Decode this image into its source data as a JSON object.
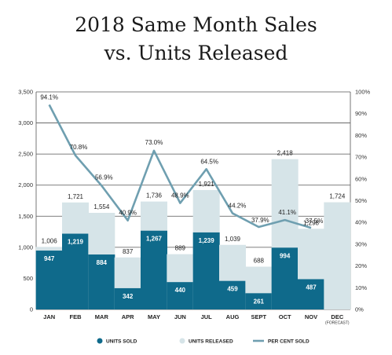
{
  "chart_data": {
    "type": "bar",
    "title_lines": [
      "2018 Same Month Sales",
      "vs. Units Released"
    ],
    "categories": [
      "JAN",
      "FEB",
      "MAR",
      "APR",
      "MAY",
      "JUN",
      "JUL",
      "AUG",
      "SEPT",
      "OCT",
      "NOV",
      "DEC"
    ],
    "category_notes": {
      "DEC": "(FORECAST)"
    },
    "series": [
      {
        "name": "UNITS SOLD",
        "type": "bar",
        "color": "#0f6a8b",
        "values": [
          947,
          1219,
          884,
          342,
          1267,
          440,
          1239,
          459,
          261,
          994,
          487,
          null
        ]
      },
      {
        "name": "UNITS RELEASED",
        "type": "bar",
        "color": "#d6e4e8",
        "values": [
          1006,
          1721,
          1554,
          837,
          1736,
          889,
          1921,
          1039,
          688,
          2418,
          1298,
          1724
        ]
      },
      {
        "name": "PER CENT SOLD",
        "type": "line",
        "color": "#6f9fb0",
        "axis": "right",
        "values": [
          94.1,
          70.8,
          56.9,
          40.9,
          73.0,
          48.9,
          64.5,
          44.2,
          37.9,
          41.1,
          37.5,
          null
        ],
        "labels": [
          "94.1%",
          "70.8%",
          "56.9%",
          "40.9%",
          "73.0%",
          "48.9%",
          "64.5%",
          "44.2%",
          "37.9%",
          "41.1%",
          "37.5%",
          null
        ]
      }
    ],
    "value_labels": {
      "sold": [
        "947",
        "1,219",
        "884",
        "342",
        "1,267",
        "440",
        "1,239",
        "459",
        "261",
        "994",
        "487",
        null
      ],
      "released": [
        "1,006",
        "1,721",
        "1,554",
        "837",
        "1,736",
        "889",
        "1,921",
        "1,039",
        "688",
        "2,418",
        "1,298",
        "1,724"
      ]
    },
    "y_left": {
      "min": 0,
      "max": 3500,
      "step": 500,
      "tick_labels": [
        "0",
        "500",
        "1,000",
        "1,500",
        "2,000",
        "2,500",
        "3,000",
        "3,500"
      ]
    },
    "y_right": {
      "min": 0,
      "max": 100,
      "step": 10,
      "tick_labels": [
        "0%",
        "10%",
        "20%",
        "30%",
        "40%",
        "50%",
        "60%",
        "70%",
        "80%",
        "90%",
        "100%"
      ]
    },
    "grid": true,
    "legend_position": "bottom"
  }
}
